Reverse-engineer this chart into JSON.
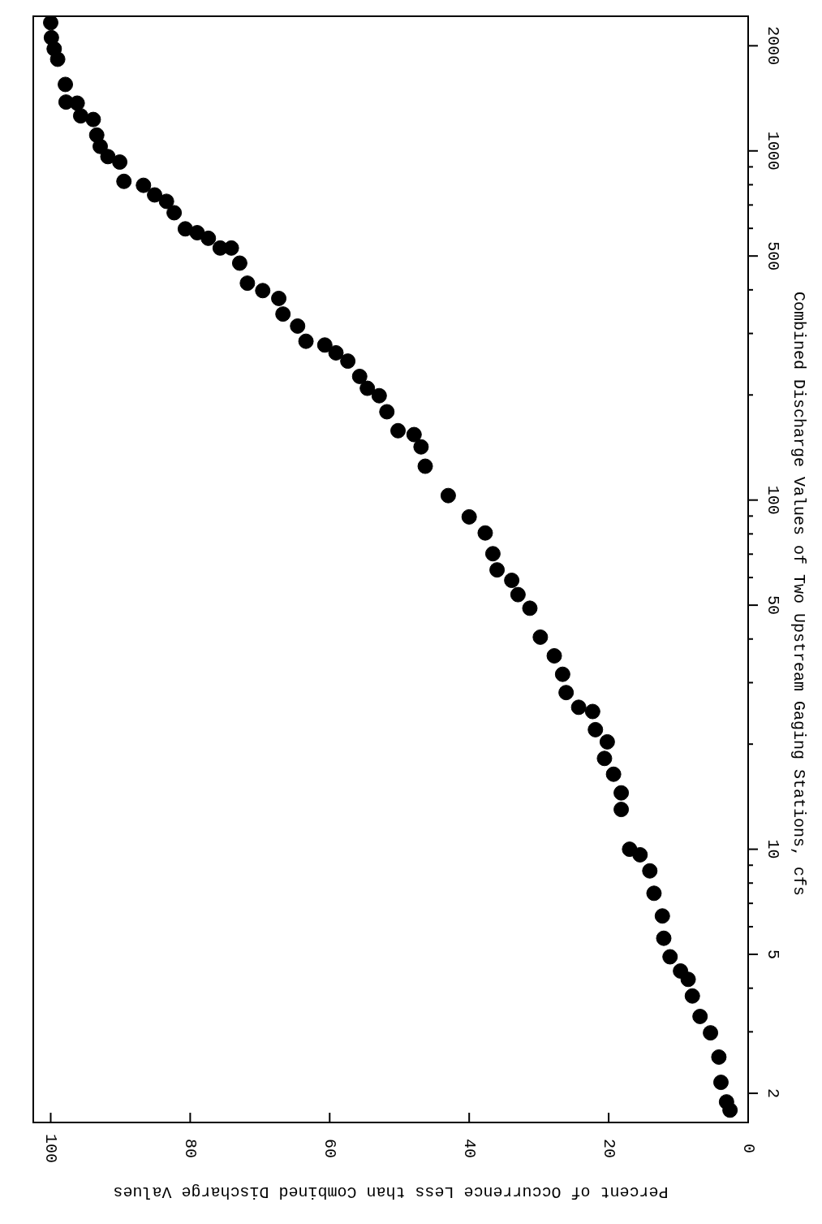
{
  "chart_data": {
    "type": "scatter",
    "xlabel": "Percent of Occurrence Less than Combined Discharge Values",
    "ylabel": "Combined Discharge Values of Two Upstream Gaging Stations, cfs",
    "log": "y",
    "marker": "circle",
    "xlim": [
      102.5,
      0
    ],
    "xticks": [
      0,
      20,
      40,
      60,
      80,
      100
    ],
    "ylim": [
      1.65,
      2430
    ],
    "yticks": [
      {
        "value": 2,
        "label": "2"
      },
      {
        "value": 3,
        "label": null
      },
      {
        "value": 4,
        "label": null
      },
      {
        "value": 5,
        "label": "5"
      },
      {
        "value": 6,
        "label": null
      },
      {
        "value": 7,
        "label": null
      },
      {
        "value": 8,
        "label": null
      },
      {
        "value": 9,
        "label": null
      },
      {
        "value": 10,
        "label": "10"
      },
      {
        "value": 20,
        "label": null
      },
      {
        "value": 30,
        "label": null
      },
      {
        "value": 40,
        "label": null
      },
      {
        "value": 50,
        "label": "50"
      },
      {
        "value": 60,
        "label": null
      },
      {
        "value": 70,
        "label": null
      },
      {
        "value": 80,
        "label": null
      },
      {
        "value": 90,
        "label": null
      },
      {
        "value": 100,
        "label": "100"
      },
      {
        "value": 200,
        "label": null
      },
      {
        "value": 300,
        "label": null
      },
      {
        "value": 400,
        "label": null
      },
      {
        "value": 500,
        "label": "500"
      },
      {
        "value": 600,
        "label": null
      },
      {
        "value": 700,
        "label": null
      },
      {
        "value": 800,
        "label": null
      },
      {
        "value": 900,
        "label": null
      },
      {
        "value": 1000,
        "label": "1000"
      },
      {
        "value": 2000,
        "label": "2000"
      }
    ],
    "series": [
      {
        "color": "#000000",
        "x": [
          100,
          99.9,
          99.5,
          99.0,
          97.9,
          97.8,
          96.2,
          95.7,
          93.9,
          93.4,
          92.9,
          91.8,
          90.1,
          89.5,
          86.7,
          85.1,
          83.4,
          82.3,
          80.7,
          79.0,
          77.4,
          75.7,
          74.1,
          72.9,
          71.8,
          69.6,
          67.3,
          66.7,
          64.6,
          63.4,
          60.7,
          59.1,
          57.4,
          55.7,
          54.6,
          52.9,
          51.8,
          50.2,
          47.9,
          46.9,
          46.3,
          43.0,
          40.0,
          37.7,
          36.6,
          36.0,
          33.9,
          33.0,
          31.3,
          29.8,
          27.8,
          26.6,
          26.1,
          24.3,
          22.3,
          21.9,
          20.2,
          20.6,
          19.3,
          18.2,
          18.2,
          17.0,
          15.5,
          14.1,
          13.5,
          12.3,
          12.1,
          11.2,
          9.7,
          8.6,
          8.0,
          6.9,
          5.4,
          4.2,
          3.9,
          3.1,
          2.6
        ],
        "values": [
          2330,
          2110,
          1960,
          1830,
          1550,
          1380,
          1370,
          1260,
          1230,
          1110,
          1030,
          963,
          929,
          818,
          797,
          748,
          717,
          665,
          598,
          583,
          562,
          527,
          527,
          477,
          418,
          398,
          378,
          341,
          315,
          285,
          278,
          264,
          250,
          226,
          209,
          199,
          179,
          158,
          154,
          142,
          125,
          103,
          89.5,
          80.5,
          70.2,
          63.1,
          58.9,
          53.6,
          49.0,
          40.5,
          35.8,
          31.7,
          28.1,
          25.5,
          24.8,
          22.0,
          20.3,
          18.2,
          16.4,
          14.5,
          13.0,
          10.0,
          9.64,
          8.67,
          7.48,
          6.44,
          5.56,
          4.92,
          4.48,
          4.24,
          3.8,
          3.32,
          2.98,
          2.54,
          2.15,
          1.89,
          1.79
        ]
      }
    ]
  }
}
